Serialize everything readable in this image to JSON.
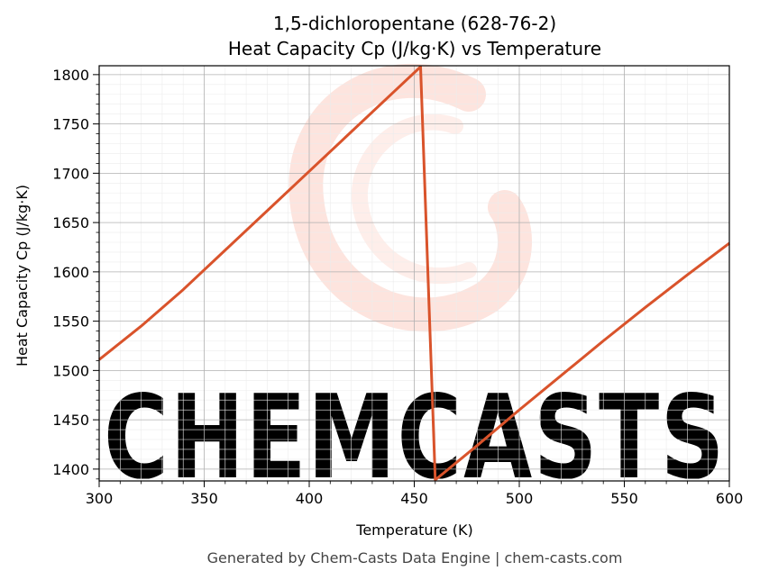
{
  "chart_data": {
    "type": "line",
    "title_line1": "1,5-dichloropentane (628-76-2)",
    "title_line2": "Heat Capacity Cp (J/kg·K) vs Temperature",
    "xlabel": "Temperature (K)",
    "ylabel": "Heat Capacity Cp (J/kg·K)",
    "xlim": [
      300,
      600
    ],
    "ylim": [
      1388,
      1809
    ],
    "xticks": [
      300,
      350,
      400,
      450,
      500,
      550,
      600
    ],
    "yticks": [
      1400,
      1450,
      1500,
      1550,
      1600,
      1650,
      1700,
      1750,
      1800
    ],
    "grid": true,
    "series": [
      {
        "color": "#d9532b",
        "x": [
          300,
          320,
          340,
          360,
          380,
          400,
          420,
          440,
          453,
          460,
          480,
          500,
          520,
          540,
          560,
          580,
          600
        ],
        "y": [
          1511,
          1545,
          1582,
          1622,
          1662,
          1702,
          1742,
          1782,
          1808,
          1389,
          1424,
          1460,
          1495,
          1530,
          1564,
          1597,
          1629
        ]
      }
    ]
  },
  "watermark": {
    "text": "CHEMCASTS",
    "color": "#fde0da"
  },
  "footer": "Generated by Chem-Casts Data Engine | chem-casts.com"
}
